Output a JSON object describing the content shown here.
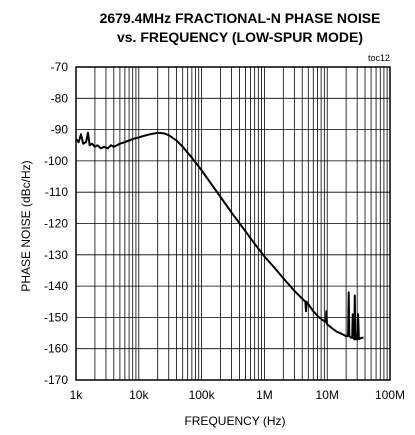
{
  "chart_data": {
    "type": "line",
    "title_lines": [
      "2679.4MHz FRACTIONAL-N PHASE NOISE",
      "vs. FREQUENCY (LOW-SPUR MODE)"
    ],
    "tag": "toc12",
    "xlabel": "FREQUENCY (Hz)",
    "ylabel": "PHASE NOISE (dBc/Hz)",
    "x_scale": "log",
    "xlim": [
      1000,
      100000000
    ],
    "ylim": [
      -170,
      -70
    ],
    "x_ticks": [
      {
        "value": 1000,
        "label": "1k"
      },
      {
        "value": 10000,
        "label": "10k"
      },
      {
        "value": 100000,
        "label": "100k"
      },
      {
        "value": 1000000,
        "label": "1M"
      },
      {
        "value": 10000000,
        "label": "10M"
      },
      {
        "value": 100000000,
        "label": "100M"
      }
    ],
    "y_ticks": [
      {
        "value": -70,
        "label": "-70"
      },
      {
        "value": -80,
        "label": "-80"
      },
      {
        "value": -90,
        "label": "-90"
      },
      {
        "value": -100,
        "label": "-100"
      },
      {
        "value": -110,
        "label": "-110"
      },
      {
        "value": -120,
        "label": "-120"
      },
      {
        "value": -130,
        "label": "-130"
      },
      {
        "value": -140,
        "label": "-140"
      },
      {
        "value": -150,
        "label": "-150"
      },
      {
        "value": -160,
        "label": "-160"
      },
      {
        "value": -170,
        "label": "-170"
      }
    ],
    "grid": true,
    "series": [
      {
        "color": "#000000",
        "points": [
          [
            1000,
            -93
          ],
          [
            1100,
            -94
          ],
          [
            1200,
            -91.5
          ],
          [
            1300,
            -94.5
          ],
          [
            1450,
            -94
          ],
          [
            1550,
            -91
          ],
          [
            1650,
            -95
          ],
          [
            1800,
            -94.5
          ],
          [
            2000,
            -95.5
          ],
          [
            2200,
            -95
          ],
          [
            2500,
            -96
          ],
          [
            2800,
            -95.5
          ],
          [
            3200,
            -96
          ],
          [
            3600,
            -95
          ],
          [
            4000,
            -95.5
          ],
          [
            4500,
            -95
          ],
          [
            5000,
            -94.5
          ],
          [
            6000,
            -94
          ],
          [
            7000,
            -93.5
          ],
          [
            8000,
            -93
          ],
          [
            10000,
            -92.5
          ],
          [
            12000,
            -92
          ],
          [
            15000,
            -91.5
          ],
          [
            18000,
            -91.2
          ],
          [
            20000,
            -91
          ],
          [
            25000,
            -91.2
          ],
          [
            30000,
            -91.8
          ],
          [
            40000,
            -93.5
          ],
          [
            50000,
            -95.5
          ],
          [
            70000,
            -99
          ],
          [
            100000,
            -103
          ],
          [
            150000,
            -108
          ],
          [
            200000,
            -111.5
          ],
          [
            300000,
            -116.5
          ],
          [
            500000,
            -122.5
          ],
          [
            700000,
            -126.5
          ],
          [
            1000000,
            -130.5
          ],
          [
            1500000,
            -134.5
          ],
          [
            2000000,
            -137.5
          ],
          [
            3000000,
            -141.5
          ],
          [
            4000000,
            -144
          ],
          [
            4500000,
            -145
          ],
          [
            4600000,
            -148
          ],
          [
            4700000,
            -145
          ],
          [
            5000000,
            -145.8
          ],
          [
            6000000,
            -148
          ],
          [
            7000000,
            -149.5
          ],
          [
            8000000,
            -150.5
          ],
          [
            9000000,
            -151.2
          ],
          [
            9500000,
            -151.5
          ],
          [
            9700000,
            -148
          ],
          [
            9900000,
            -152
          ],
          [
            10000000,
            -152.2
          ],
          [
            12000000,
            -153.5
          ],
          [
            14000000,
            -154.5
          ],
          [
            16000000,
            -155
          ],
          [
            18000000,
            -155.5
          ],
          [
            20000000,
            -156
          ],
          [
            21500000,
            -156
          ],
          [
            22000000,
            -142
          ],
          [
            22500000,
            -156
          ],
          [
            24000000,
            -156.5
          ],
          [
            25000000,
            -156.5
          ],
          [
            25500000,
            -149
          ],
          [
            26000000,
            -156.5
          ],
          [
            27000000,
            -157
          ],
          [
            27500000,
            -143
          ],
          [
            28000000,
            -157
          ],
          [
            30000000,
            -157
          ],
          [
            31000000,
            -149
          ],
          [
            32000000,
            -157
          ],
          [
            35000000,
            -156.5
          ],
          [
            38000000,
            -156.5
          ]
        ]
      }
    ]
  }
}
